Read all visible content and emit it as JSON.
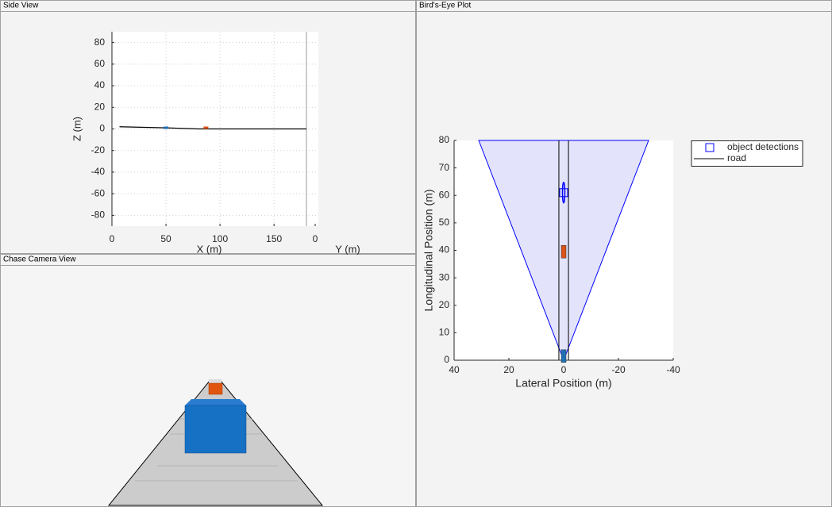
{
  "panels": {
    "side": "Side View",
    "chase": "Chase Camera View",
    "bird": "Bird's-Eye Plot"
  },
  "chart_data": [
    {
      "type": "line",
      "xlabel": "X (m)",
      "ylabel": "Z (m)",
      "xlim": [
        0,
        180
      ],
      "ylim": [
        -90,
        90
      ],
      "xticks": [
        0,
        50,
        100,
        150
      ],
      "yticks": [
        -80,
        -60,
        -40,
        -20,
        0,
        20,
        40,
        60,
        80
      ],
      "grid": true,
      "lateral": {
        "label": "Y (m)",
        "lim": [
          -11,
          4
        ],
        "ticks": [
          0
        ]
      },
      "series": [
        {
          "color": "#000000",
          "x": [
            7,
            50,
            80,
            180
          ],
          "values": [
            2,
            1,
            0,
            0
          ]
        }
      ],
      "vehicles": [
        {
          "color": "#1f6fb4",
          "x": 50,
          "z": 0
        },
        {
          "color": "#d95319",
          "x": 87,
          "z": 0
        }
      ]
    },
    {
      "type": "birdseye",
      "xlabel": "Lateral Position (m)",
      "ylabel": "Longitudinal Position (m)",
      "xlim": [
        40,
        -40
      ],
      "ylim": [
        0,
        80
      ],
      "xticks": [
        40,
        20,
        0,
        -20,
        -40
      ],
      "yticks": [
        0,
        10,
        20,
        30,
        40,
        50,
        60,
        70,
        80
      ],
      "coverage": {
        "color": "#e3e3fb",
        "edge": "#0000ff",
        "x": [
          31,
          0,
          -31
        ],
        "y": [
          80,
          0,
          80
        ]
      },
      "series": [
        {
          "name": "object detections",
          "color": "#0000ff",
          "x": [
            0
          ],
          "values": [
            61
          ]
        },
        {
          "name": "road",
          "color": "#000000",
          "x": [
            1.75,
            1.75,
            null,
            -1.75,
            -1.75
          ],
          "values": [
            0,
            80,
            null,
            0,
            80
          ]
        }
      ],
      "vehicles": [
        {
          "color": "#d95319",
          "x": 0,
          "y": 39.5
        },
        {
          "color": "#1f6fb4",
          "x": 0,
          "y": 1.5
        }
      ],
      "legend": "outside-right"
    }
  ]
}
